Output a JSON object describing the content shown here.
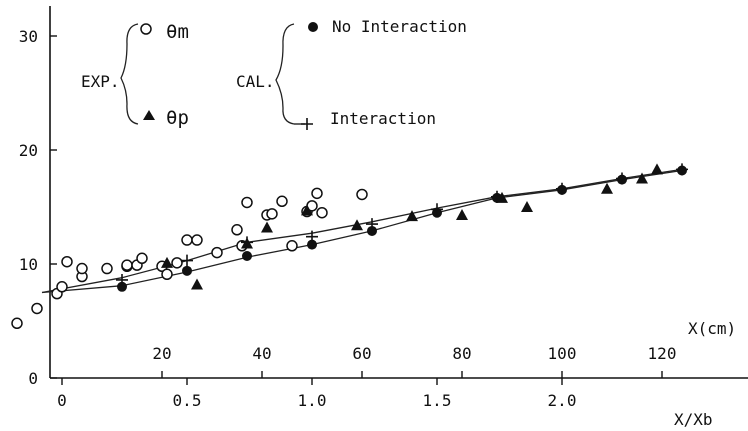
{
  "chart_data": {
    "type": "scatter",
    "title": "",
    "xlabel": "X(cm)",
    "xlabel_secondary": "X/Xb",
    "ylabel": "",
    "x_primary_unit": "X(cm)",
    "xlim": [
      -4,
      125
    ],
    "ylim": [
      0,
      34
    ],
    "y_ticks": [
      "0",
      "10",
      "20",
      "30"
    ],
    "x_ticks_cm": [
      "20",
      "40",
      "60",
      "80",
      "100",
      "120"
    ],
    "x_ticks_ratio": [
      "0",
      "0.5",
      "1.0",
      "1.5",
      "2.0"
    ],
    "grid": false,
    "legend": {
      "exp_label": "EXP.",
      "cal_label": "CAL.",
      "theta_m": "θm",
      "theta_p": "θp",
      "no_interaction": "No Interaction",
      "interaction": "Interaction"
    },
    "series": [
      {
        "name": "θm",
        "marker": "open-circle",
        "x": [
          -9,
          -5,
          -1,
          0,
          1,
          4,
          4,
          9,
          13,
          13,
          15,
          16,
          20,
          21,
          23,
          25,
          27,
          31,
          35,
          36,
          37,
          41,
          42,
          44,
          46,
          49,
          50,
          51,
          52,
          60
        ],
        "y": [
          4.8,
          6.1,
          7.4,
          8.0,
          10.2,
          8.9,
          9.6,
          9.6,
          9.8,
          9.9,
          9.9,
          10.5,
          9.8,
          9.1,
          10.1,
          12.1,
          12.1,
          11.0,
          13.0,
          11.6,
          15.4,
          14.3,
          14.4,
          15.5,
          11.6,
          14.6,
          15.1,
          16.2,
          14.5,
          16.1
        ]
      },
      {
        "name": "θp",
        "marker": "filled-triangle",
        "x": [
          21,
          27,
          37,
          41,
          49,
          59,
          70,
          80,
          88,
          93,
          109,
          116,
          119
        ],
        "y": [
          10.1,
          8.2,
          11.8,
          13.2,
          14.7,
          13.4,
          14.2,
          14.3,
          15.8,
          15.0,
          16.6,
          17.5,
          18.3
        ]
      },
      {
        "name": "No Interaction",
        "marker": "filled-circle",
        "x": [
          12,
          25,
          37,
          50,
          62,
          75,
          87,
          100,
          112,
          124
        ],
        "y": [
          8.0,
          9.4,
          10.7,
          11.7,
          12.9,
          14.5,
          15.8,
          16.5,
          17.4,
          18.2
        ]
      },
      {
        "name": "Interaction",
        "marker": "plus",
        "x": [
          12,
          25,
          37,
          50,
          62,
          75,
          87,
          100,
          112,
          124
        ],
        "y": [
          8.6,
          10.3,
          11.9,
          12.4,
          13.5,
          14.8,
          15.9,
          16.6,
          17.5,
          18.3
        ]
      }
    ],
    "curves": [
      {
        "name": "No Interaction",
        "x": [
          -4,
          12,
          25,
          37,
          50,
          62,
          75,
          87,
          100,
          112,
          124
        ],
        "y": [
          7.5,
          8.1,
          9.3,
          10.6,
          11.7,
          12.9,
          14.5,
          15.8,
          16.5,
          17.4,
          18.2
        ]
      },
      {
        "name": "Interaction",
        "x": [
          -4,
          12,
          25,
          37,
          50,
          62,
          75,
          87,
          100,
          112,
          124
        ],
        "y": [
          7.5,
          8.8,
          10.3,
          11.9,
          12.7,
          13.7,
          14.9,
          15.9,
          16.6,
          17.5,
          18.3
        ]
      }
    ]
  }
}
